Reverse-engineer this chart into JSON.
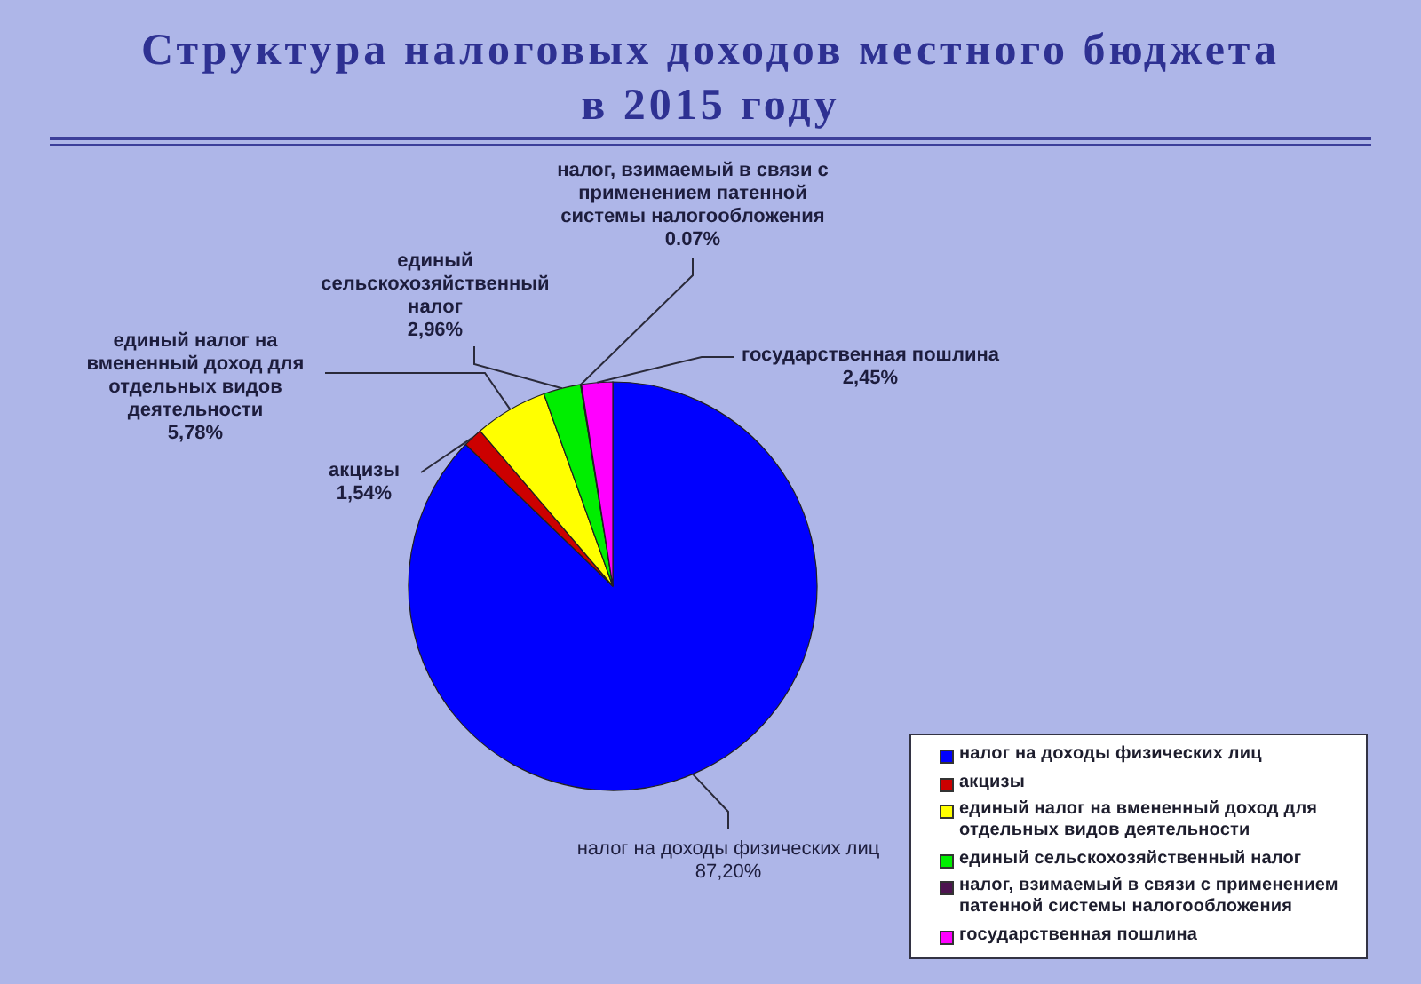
{
  "chart_data": {
    "type": "pie",
    "title": "Структура налоговых доходов местного бюджета в 2015 году",
    "categories": [
      "налог на доходы физических лиц",
      "акцизы",
      "единый налог на вмененный доход для отдельных видов деятельности",
      "единый сельскохозяйственный налог",
      "налог, взимаемый в связи с применением патенной системы налогообложения",
      "государственная пошлина"
    ],
    "values": [
      87.2,
      1.54,
      5.78,
      2.96,
      0.07,
      2.45
    ],
    "value_labels": [
      "87,20%",
      "1,54%",
      "5,78%",
      "2,96%",
      "0.07%",
      "2,45%"
    ],
    "colors": [
      "#0000ff",
      "#cc0000",
      "#ffff00",
      "#00ee00",
      "#4d1450",
      "#ff00ff"
    ],
    "legend": "bottom right"
  }
}
